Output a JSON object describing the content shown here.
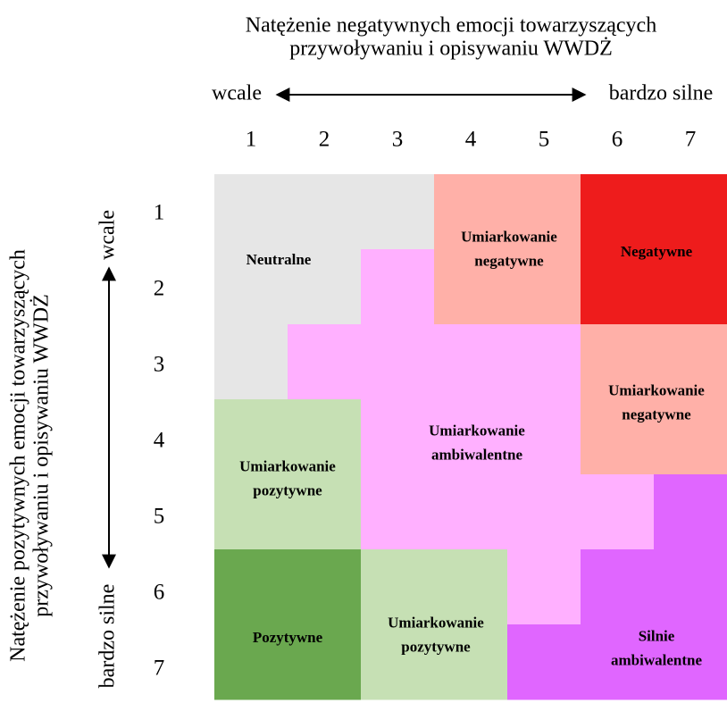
{
  "top_axis": {
    "title": [
      "Natężenie negatywnych emocji towarzyszących",
      "przywoływaniu i opisywaniu WWDŻ"
    ],
    "start": "wcale",
    "end": "bardzo silne",
    "numbers": [
      1,
      2,
      3,
      4,
      5,
      6,
      7
    ]
  },
  "left_axis": {
    "title": [
      "Natężenie pozytywnych emocji towarzyszących",
      "przywoływaniu i opisywaniu WWDŻ"
    ],
    "start": "wcale",
    "end": "bardzo silne",
    "numbers": [
      1,
      2,
      3,
      4,
      5,
      6,
      7
    ]
  },
  "regions": [
    {
      "label": [
        "Neutralne"
      ]
    },
    {
      "label": [
        "Umiarkowanie",
        "negatywne"
      ]
    },
    {
      "label": [
        "Negatywne"
      ]
    },
    {
      "label": [
        "Umiarkowanie",
        "negatywne"
      ]
    },
    {
      "label": [
        "Umiarkowanie",
        "ambiwalentne"
      ]
    },
    {
      "label": [
        "Umiarkowanie",
        "pozytywne"
      ]
    },
    {
      "label": [
        "Pozytywne"
      ]
    },
    {
      "label": [
        "Umiarkowanie",
        "pozytywne"
      ]
    },
    {
      "label": [
        "Silnie",
        "ambiwalentne"
      ]
    }
  ]
}
